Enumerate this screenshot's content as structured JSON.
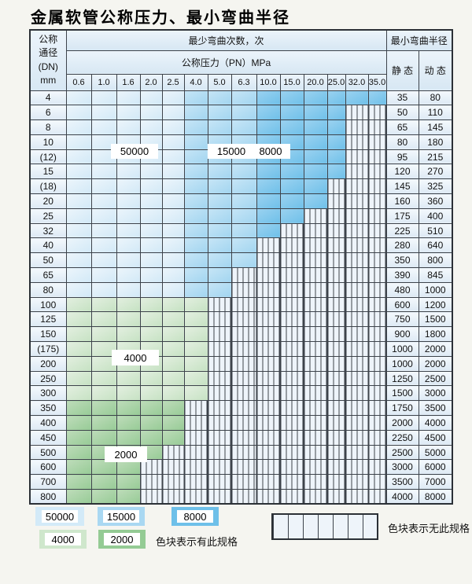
{
  "title": "金属软管公称压力、最小弯曲半径",
  "header": {
    "dn_lines": [
      "公称",
      "通径",
      "(DN)",
      "mm"
    ],
    "cycles_label": "最少弯曲次数，次",
    "pressure_label": "公称压力（PN）MPa",
    "radius_label": "最小弯曲半径",
    "static_label": "静 态",
    "dynamic_label": "动 态"
  },
  "pressure_columns": [
    "0.6",
    "1.0",
    "1.6",
    "2.0",
    "2.5",
    "4.0",
    "5.0",
    "6.3",
    "10.0",
    "15.0",
    "20.0",
    "25.0",
    "32.0",
    "35.0"
  ],
  "zone_values": {
    "c50": "50000",
    "c15": "15000",
    "c8": "8000",
    "g4": "4000",
    "g2": "2000"
  },
  "blue_zone_split": {
    "c50_through": 5,
    "c15_through": 8
  },
  "rows": [
    {
      "dn": "4",
      "band": "blue",
      "colored": 14,
      "static": "35",
      "dynamic": "80"
    },
    {
      "dn": "6",
      "band": "blue",
      "colored": 12,
      "static": "50",
      "dynamic": "110"
    },
    {
      "dn": "8",
      "band": "blue",
      "colored": 12,
      "static": "65",
      "dynamic": "145"
    },
    {
      "dn": "10",
      "band": "blue",
      "colored": 12,
      "static": "80",
      "dynamic": "180"
    },
    {
      "dn": "(12)",
      "band": "blue",
      "colored": 12,
      "static": "95",
      "dynamic": "215"
    },
    {
      "dn": "15",
      "band": "blue",
      "colored": 12,
      "static": "120",
      "dynamic": "270"
    },
    {
      "dn": "(18)",
      "band": "blue",
      "colored": 11,
      "static": "145",
      "dynamic": "325"
    },
    {
      "dn": "20",
      "band": "blue",
      "colored": 11,
      "static": "160",
      "dynamic": "360"
    },
    {
      "dn": "25",
      "band": "blue",
      "colored": 10,
      "static": "175",
      "dynamic": "400"
    },
    {
      "dn": "32",
      "band": "blue",
      "colored": 9,
      "static": "225",
      "dynamic": "510"
    },
    {
      "dn": "40",
      "band": "blue",
      "colored": 8,
      "static": "280",
      "dynamic": "640"
    },
    {
      "dn": "50",
      "band": "blue",
      "colored": 8,
      "static": "350",
      "dynamic": "800"
    },
    {
      "dn": "65",
      "band": "blue",
      "colored": 7,
      "static": "390",
      "dynamic": "845"
    },
    {
      "dn": "80",
      "band": "blue",
      "colored": 7,
      "static": "480",
      "dynamic": "1000"
    },
    {
      "dn": "100",
      "band": "g4",
      "colored": 6,
      "static": "600",
      "dynamic": "1200"
    },
    {
      "dn": "125",
      "band": "g4",
      "colored": 6,
      "static": "750",
      "dynamic": "1500"
    },
    {
      "dn": "150",
      "band": "g4",
      "colored": 6,
      "static": "900",
      "dynamic": "1800"
    },
    {
      "dn": "(175)",
      "band": "g4",
      "colored": 6,
      "static": "1000",
      "dynamic": "2000"
    },
    {
      "dn": "200",
      "band": "g4",
      "colored": 6,
      "static": "1000",
      "dynamic": "2000"
    },
    {
      "dn": "250",
      "band": "g4",
      "colored": 6,
      "static": "1250",
      "dynamic": "2500"
    },
    {
      "dn": "300",
      "band": "g4",
      "colored": 6,
      "static": "1500",
      "dynamic": "3000"
    },
    {
      "dn": "350",
      "band": "g2",
      "colored": 5,
      "static": "1750",
      "dynamic": "3500"
    },
    {
      "dn": "400",
      "band": "g2",
      "colored": 5,
      "static": "2000",
      "dynamic": "4000"
    },
    {
      "dn": "450",
      "band": "g2",
      "colored": 5,
      "static": "2250",
      "dynamic": "4500"
    },
    {
      "dn": "500",
      "band": "g2",
      "colored": 4,
      "static": "2500",
      "dynamic": "5000"
    },
    {
      "dn": "600",
      "band": "g2",
      "colored": 3,
      "static": "3000",
      "dynamic": "6000"
    },
    {
      "dn": "700",
      "band": "g2",
      "colored": 3,
      "static": "3500",
      "dynamic": "7000"
    },
    {
      "dn": "800",
      "band": "g2",
      "colored": 3,
      "static": "4000",
      "dynamic": "8000"
    }
  ],
  "overlay_labels": {
    "l50000": "50000",
    "l15000": "15000",
    "l8000": "8000",
    "l4000": "4000",
    "l2000": "2000"
  },
  "legend": {
    "items": [
      {
        "value": "50000",
        "cls": "sw-c50"
      },
      {
        "value": "15000",
        "cls": "sw-c15"
      },
      {
        "value": "8000",
        "cls": "sw-c8"
      },
      {
        "value": "4000",
        "cls": "sw-g4"
      },
      {
        "value": "2000",
        "cls": "sw-g2"
      }
    ],
    "has_spec_note": "色块表示有此规格",
    "no_spec_note": "色块表示无此规格"
  },
  "colors": {
    "cycles_50000": "#d3eaf8",
    "cycles_15000": "#a9d8f2",
    "cycles_8000": "#6ec0e9",
    "cycles_4000": "#cfe7cc",
    "cycles_2000": "#94cb94",
    "no_spec_bg": "#eef4fa",
    "grid_line": "#3d434b"
  }
}
